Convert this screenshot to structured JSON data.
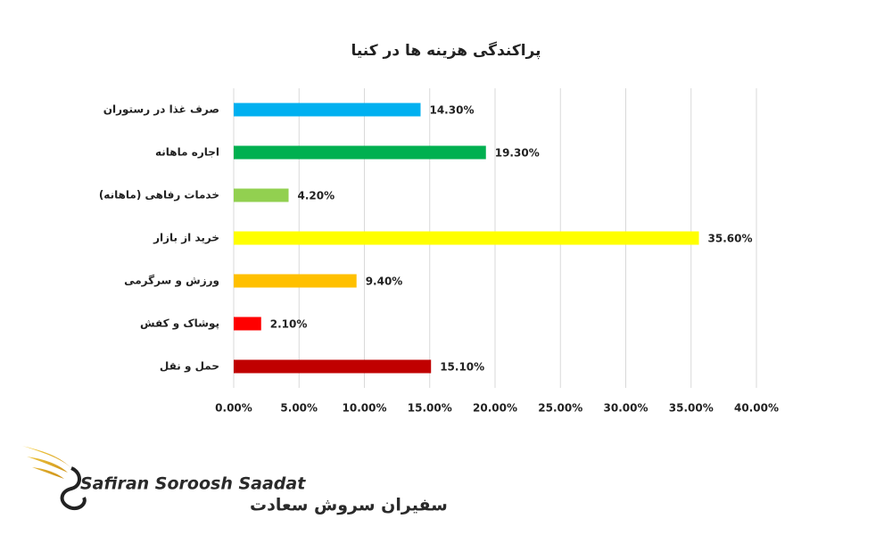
{
  "chart_data": {
    "type": "bar",
    "orientation": "horizontal",
    "title": "پراکندگی هزینه ها در کنیا",
    "categories": [
      "صرف غذا در رستوران",
      "اجاره ماهانه",
      "خدمات رفاهی (ماهانه)",
      "خرید از بازار",
      "ورزش و سرگرمی",
      "پوشاک و کفش",
      "حمل و نقل"
    ],
    "values": [
      14.3,
      19.3,
      4.2,
      35.6,
      9.4,
      2.1,
      15.1
    ],
    "value_labels": [
      "14.30%",
      "19.30%",
      "4.20%",
      "35.60%",
      "9.40%",
      "2.10%",
      "15.10%"
    ],
    "colors": [
      "#00b0f0",
      "#00b050",
      "#92d050",
      "#ffff00",
      "#ffc000",
      "#ff0000",
      "#c00000"
    ],
    "xlim": [
      0,
      40
    ],
    "xticks": [
      {
        "value": 0,
        "label": "0.00%"
      },
      {
        "value": 5,
        "label": "5.00%"
      },
      {
        "value": 10,
        "label": "10.00%"
      },
      {
        "value": 15,
        "label": "15.00%"
      },
      {
        "value": 20,
        "label": "20.00%"
      },
      {
        "value": 25,
        "label": "25.00%"
      },
      {
        "value": 30,
        "label": "30.00%"
      },
      {
        "value": 35,
        "label": "35.00%"
      },
      {
        "value": 40,
        "label": "40.00%"
      }
    ],
    "grid": true
  },
  "logo": {
    "name": "Safiran Soroosh Saadat",
    "name_fa": "سفیران سروش سعادت"
  }
}
